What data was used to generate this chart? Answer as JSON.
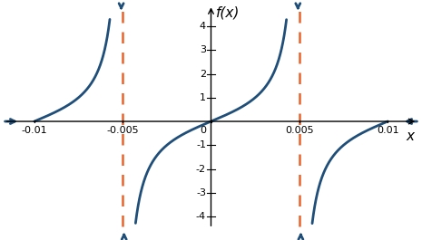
{
  "xlim": [
    -0.0118,
    0.0118
  ],
  "ylim": [
    -4.6,
    5.0
  ],
  "plot_ylim": [
    -4.3,
    4.3
  ],
  "xticks": [
    -0.01,
    -0.005,
    0,
    0.005,
    0.01
  ],
  "xtick_labels": [
    "-0.01",
    "-0.005",
    "0",
    "0.005",
    "0.01"
  ],
  "yticks": [
    -4,
    -3,
    -2,
    -1,
    1,
    2,
    3,
    4
  ],
  "ytick_labels": [
    "-4",
    "-3",
    "-2",
    "-1",
    "1",
    "2",
    "3",
    "4"
  ],
  "asymptotes": [
    -0.005,
    0.005
  ],
  "period": 0.01,
  "xlabel": "x",
  "ylabel": "f(x)",
  "curve_color": "#1F4E79",
  "asymptote_color": "#E8622A",
  "curve_linewidth": 2.0,
  "asymptote_linewidth": 1.8,
  "clip_val": 4.3,
  "background_color": "#ffffff",
  "axis_arrow_mutation": 10,
  "curve_arrow_mutation": 9,
  "tick_fontsize": 8,
  "label_fontsize": 11
}
